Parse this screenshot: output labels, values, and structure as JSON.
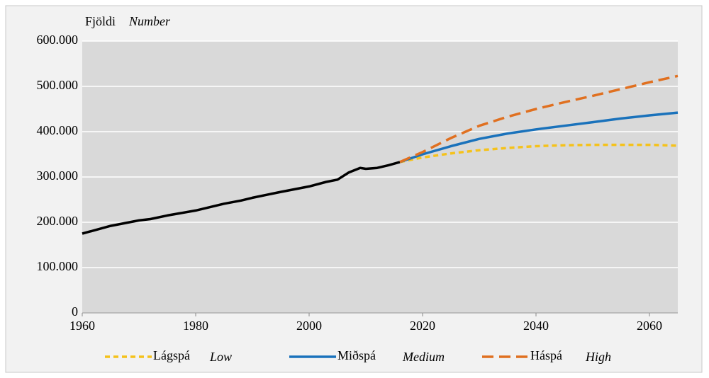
{
  "chart_data": {
    "type": "line",
    "ylabel": "Fjöldi",
    "ylabel_en": "Number",
    "xlim": [
      1960,
      2065
    ],
    "xticks": [
      1960,
      1980,
      2000,
      2020,
      2040,
      2060
    ],
    "ylim": [
      0,
      600000
    ],
    "yticks": [
      0,
      {
        "value": 100000,
        "label": "100.000"
      },
      {
        "value": 200000,
        "label": "200.000"
      },
      {
        "value": 300000,
        "label": "300.000"
      },
      {
        "value": 400000,
        "label": "400.000"
      },
      {
        "value": 500000,
        "label": "500.000"
      },
      {
        "value": 600000,
        "label": "600.000"
      }
    ],
    "grid": true,
    "series": [
      {
        "color": "#000000",
        "style": "solid",
        "x": [
          1960,
          1965,
          1970,
          1972,
          1975,
          1980,
          1985,
          1988,
          1990,
          1995,
          2000,
          2003,
          2005,
          2007,
          2009,
          2010,
          2012,
          2014,
          2016
        ],
        "values": [
          175000,
          192000,
          204000,
          207000,
          215000,
          226000,
          241000,
          248000,
          254000,
          267000,
          279000,
          289000,
          294000,
          310000,
          320000,
          318000,
          320000,
          326000,
          333000
        ]
      },
      {
        "name": "Lágspá",
        "name_en": "Low",
        "color": "#f5c21b",
        "style": "dotted",
        "x": [
          2016,
          2020,
          2025,
          2030,
          2035,
          2040,
          2045,
          2050,
          2055,
          2060,
          2065
        ],
        "values": [
          333000,
          343000,
          352000,
          359000,
          364000,
          368000,
          370000,
          371000,
          371000,
          371000,
          369000
        ]
      },
      {
        "name": "Miðspá",
        "name_en": "Medium",
        "color": "#1a72bb",
        "style": "solid",
        "x": [
          2016,
          2020,
          2025,
          2030,
          2035,
          2040,
          2045,
          2050,
          2055,
          2060,
          2065
        ],
        "values": [
          333000,
          350000,
          368000,
          384000,
          396000,
          405000,
          413000,
          421000,
          429000,
          436000,
          442000
        ]
      },
      {
        "name": "Háspá",
        "name_en": "High",
        "color": "#e07020",
        "style": "dashed",
        "x": [
          2016,
          2020,
          2025,
          2030,
          2035,
          2040,
          2045,
          2050,
          2055,
          2060,
          2065
        ],
        "values": [
          333000,
          355000,
          386000,
          413000,
          433000,
          450000,
          465000,
          479000,
          494000,
          509000,
          523000
        ]
      }
    ]
  }
}
